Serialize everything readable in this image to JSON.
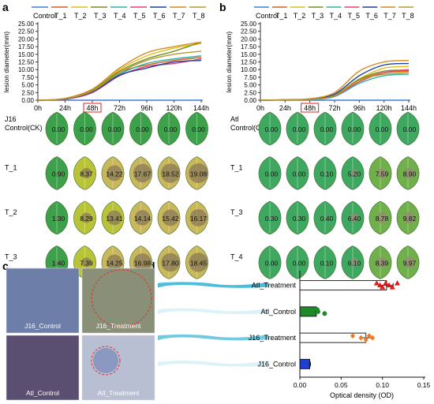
{
  "panels": {
    "a": {
      "label": "a"
    },
    "b": {
      "label": "b"
    },
    "c": {
      "label": "c"
    },
    "d": {
      "label": "d"
    }
  },
  "chart_data": [
    {
      "type": "line",
      "panel": "a",
      "ylabel": "lesion diameter(mm)",
      "xlabel": "",
      "x": [
        "0h",
        "24h",
        "48h",
        "72h",
        "96h",
        "120h",
        "144h"
      ],
      "highlighted_tick": "48h",
      "yticks": [
        "0.00",
        "2.50",
        "5.00",
        "7.50",
        "10.00",
        "12.50",
        "15.00",
        "17.50",
        "20.00",
        "22.50",
        "25.00"
      ],
      "ylim": [
        0,
        25
      ],
      "legend": "top",
      "grid": false,
      "series": [
        {
          "name": "Control",
          "color": "#3f7fd8",
          "values": [
            0,
            0,
            0,
            0,
            0,
            0,
            0
          ]
        },
        {
          "name": "T_1",
          "color": "#e05a1a",
          "values": [
            0,
            0.5,
            3.0,
            9.0,
            11.5,
            13.0,
            14.0
          ]
        },
        {
          "name": "T_2",
          "color": "#d9c01e",
          "values": [
            0,
            0.6,
            3.5,
            10.0,
            14.5,
            17.0,
            18.5
          ]
        },
        {
          "name": "T_3",
          "color": "#7a8a1f",
          "values": [
            0,
            0.5,
            3.2,
            9.5,
            13.5,
            16.0,
            19.0
          ]
        },
        {
          "name": "T_4",
          "color": "#2bb4a8",
          "values": [
            0,
            0.4,
            2.8,
            8.5,
            12.0,
            13.5,
            14.5
          ]
        },
        {
          "name": "T_5",
          "color": "#e0436b",
          "values": [
            0,
            0.3,
            2.5,
            8.0,
            11.0,
            12.0,
            13.5
          ]
        },
        {
          "name": "T_6",
          "color": "#1f3f9a",
          "values": [
            0,
            0.4,
            2.7,
            8.2,
            10.5,
            12.5,
            13.0
          ]
        },
        {
          "name": "T_7",
          "color": "#d48a1c",
          "values": [
            0,
            0.6,
            3.6,
            10.5,
            15.5,
            17.5,
            19.0
          ]
        },
        {
          "name": "T_8",
          "color": "#b69830",
          "values": [
            0,
            0.5,
            3.0,
            9.0,
            13.0,
            15.0,
            16.0
          ]
        }
      ]
    },
    {
      "type": "line",
      "panel": "b",
      "ylabel": "lesion diameter(mm)",
      "xlabel": "",
      "x": [
        "0h",
        "24h",
        "48h",
        "72h",
        "96h",
        "120h",
        "144h"
      ],
      "highlighted_tick": "48h",
      "yticks": [
        "0.00",
        "2.50",
        "5.00",
        "7.50",
        "10.00",
        "12.50",
        "15.00",
        "17.50",
        "20.00",
        "22.50",
        "25.00"
      ],
      "ylim": [
        0,
        25
      ],
      "legend": "top",
      "grid": false,
      "series": [
        {
          "name": "Control",
          "color": "#3f7fd8",
          "values": [
            0,
            0,
            0,
            0,
            0,
            0,
            0
          ]
        },
        {
          "name": "T_1",
          "color": "#e05a1a",
          "values": [
            0,
            0.1,
            0.3,
            1.5,
            6.5,
            9.0,
            9.5
          ]
        },
        {
          "name": "T_2",
          "color": "#d9c01e",
          "values": [
            0,
            0.1,
            0.4,
            1.8,
            7.0,
            10.5,
            11.0
          ]
        },
        {
          "name": "T_3",
          "color": "#7a8a1f",
          "values": [
            0,
            0.1,
            0.3,
            1.6,
            6.8,
            9.5,
            9.8
          ]
        },
        {
          "name": "T_4",
          "color": "#2bb4a8",
          "values": [
            0,
            0.1,
            0.2,
            1.2,
            5.5,
            8.0,
            8.5
          ]
        },
        {
          "name": "T_5",
          "color": "#e0436b",
          "values": [
            0,
            0.1,
            0.3,
            1.4,
            6.0,
            9.0,
            10.0
          ]
        },
        {
          "name": "T_6",
          "color": "#1f3f9a",
          "values": [
            0,
            0.1,
            0.4,
            2.0,
            8.0,
            11.5,
            12.0
          ]
        },
        {
          "name": "T_7",
          "color": "#d48a1c",
          "values": [
            0,
            0.2,
            0.5,
            2.5,
            9.5,
            12.5,
            13.0
          ]
        },
        {
          "name": "T_8",
          "color": "#b69830",
          "values": [
            0,
            0.1,
            0.3,
            1.5,
            6.5,
            8.5,
            9.0
          ]
        }
      ]
    },
    {
      "type": "bar",
      "panel": "d",
      "orientation": "horizontal",
      "xlabel": "Optical density (OD)",
      "ylabel": "",
      "xlim": [
        0,
        0.15
      ],
      "xticks": [
        "0.00",
        "0.05",
        "0.10",
        "0.15"
      ],
      "categories": [
        "Atl_Treatment",
        "Atl_Control",
        "J16_Treatment",
        "J16_Control"
      ],
      "values": [
        0.105,
        0.02,
        0.08,
        0.012
      ],
      "error": [
        0.008,
        0.002,
        0.008,
        0.001
      ],
      "bar_colors": [
        "#ffffff",
        "#1f8a2a",
        "#ffffff",
        "#1f3fd0"
      ],
      "point_colors": [
        "#e01818",
        "#1f8a2a",
        "#f07a20",
        "#1f3fd0"
      ],
      "points": [
        [
          0.093,
          0.097,
          0.1,
          0.104,
          0.108,
          0.112,
          0.118
        ],
        [
          0.021,
          0.022,
          0.03
        ],
        [
          0.064,
          0.074,
          0.08,
          0.084,
          0.088
        ],
        [
          0.012,
          0.012
        ]
      ]
    }
  ],
  "leaf_grid_a": {
    "rows": [
      {
        "label": "J16\nControl(CK)",
        "values": [
          "0.00",
          "0.00",
          "0.00",
          "0.00",
          "0.00",
          "0.00"
        ]
      },
      {
        "label": "T_1",
        "values": [
          "0.90",
          "8.37",
          "14.22",
          "17.67",
          "18.52",
          "19.08"
        ]
      },
      {
        "label": "T_2",
        "values": [
          "1.30",
          "8.29",
          "13.41",
          "14.14",
          "15.42",
          "16.17"
        ]
      },
      {
        "label": "T_3",
        "values": [
          "1.40",
          "7.39",
          "14.25",
          "16.98",
          "17.80",
          "18.45"
        ]
      }
    ]
  },
  "leaf_grid_b": {
    "rows": [
      {
        "label": "Atl\nControl(CK)",
        "values": [
          "0.00",
          "0.00",
          "0.00",
          "0.00",
          "0.00",
          "0.00"
        ]
      },
      {
        "label": "T_1",
        "values": [
          "0.00",
          "0.00",
          "0.10",
          "5.20",
          "7.59",
          "8.90"
        ]
      },
      {
        "label": "T_3",
        "values": [
          "0.30",
          "0.30",
          "0.40",
          "6.40",
          "8.78",
          "9.82"
        ]
      },
      {
        "label": "T_4",
        "values": [
          "0.00",
          "0.00",
          "0.10",
          "6.10",
          "8.39",
          "9.97"
        ]
      }
    ]
  },
  "panel_c": {
    "images": [
      {
        "label": "J16_Control",
        "tone": "#6d7ea8"
      },
      {
        "label": "J16_Treatment",
        "tone": "#8a9078"
      },
      {
        "label": "Atl_Control",
        "tone": "#5a4f70"
      },
      {
        "label": "Atl_Treatment",
        "tone": "#b8bfd2"
      }
    ]
  }
}
